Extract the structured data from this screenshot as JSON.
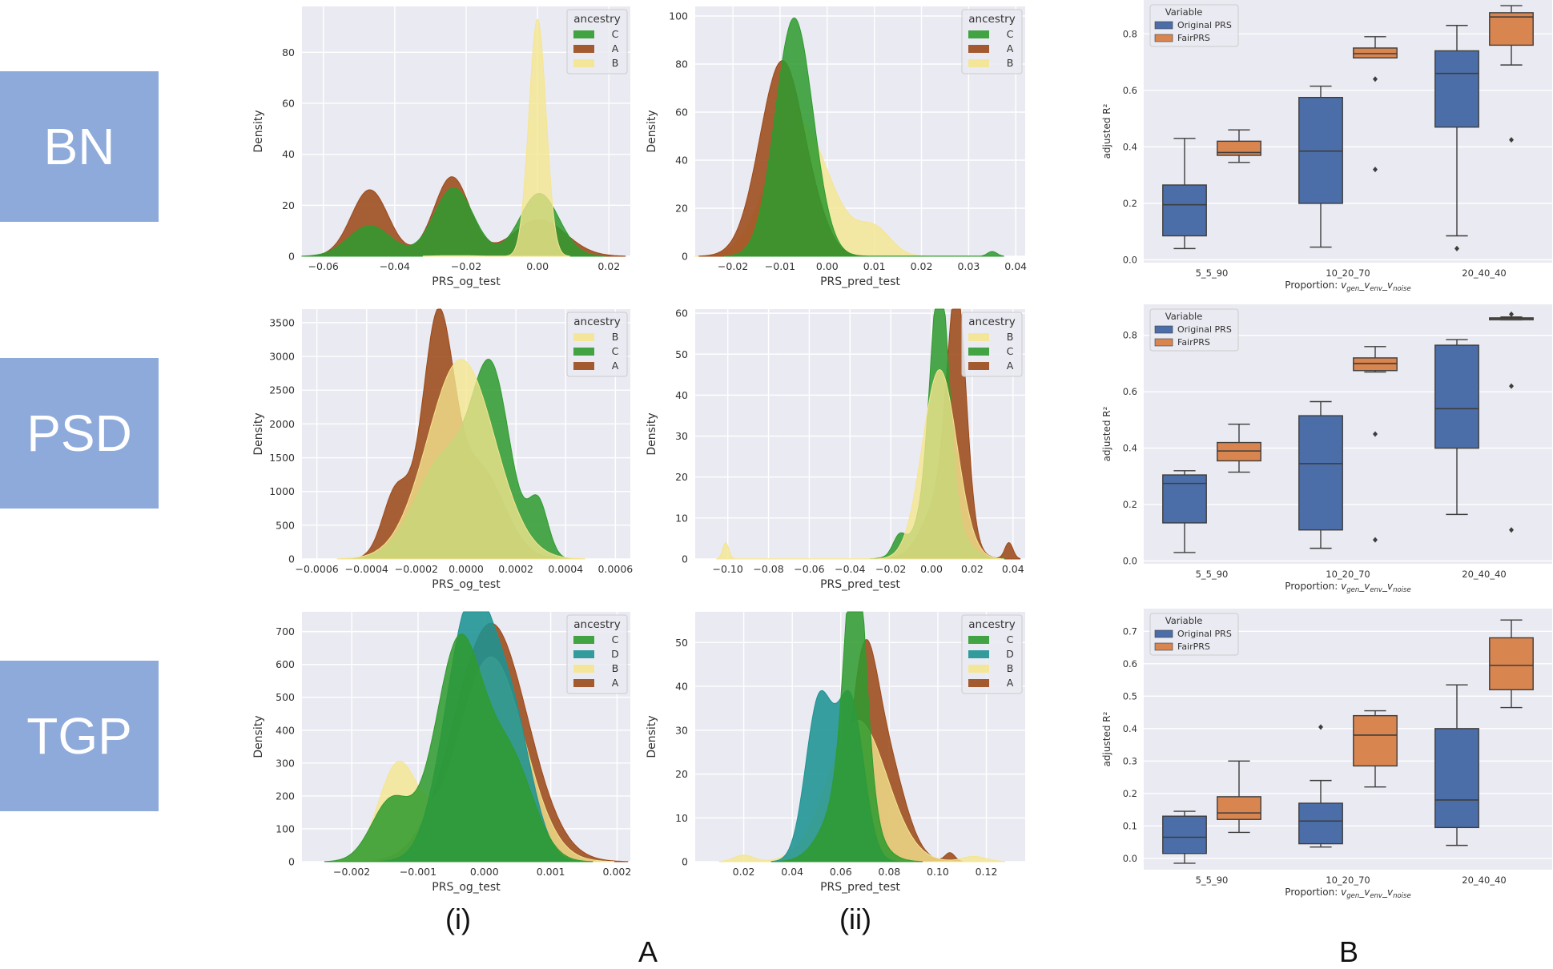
{
  "rows": [
    {
      "label": "BN"
    },
    {
      "label": "PSD"
    },
    {
      "label": "TGP"
    }
  ],
  "captions": {
    "col_i": "(i)",
    "col_ii": "(ii)",
    "panel_a": "A",
    "panel_b": "B"
  },
  "colors": {
    "A": "#9c4a1a",
    "B": "#f5e58e",
    "C": "#2f9b2f",
    "D": "#1e9393",
    "original": "#4c6ea8",
    "fair": "#d9854f",
    "bg": "#eaeaf2",
    "grid": "#ffffff"
  },
  "chart_data": [
    {
      "type": "area",
      "id": "bn_og",
      "xlabel": "PRS_og_test",
      "ylabel": "Density",
      "legend_title": "ancestry",
      "legend_order": [
        "C",
        "A",
        "B"
      ],
      "xlim": [
        -0.066,
        0.026
      ],
      "ylim": [
        0,
        98
      ],
      "xticks": [
        -0.06,
        -0.04,
        -0.02,
        0.0,
        0.02
      ],
      "xticklabels": [
        "−0.06",
        "−0.04",
        "−0.02",
        "0.00",
        "0.02"
      ],
      "yticks": [
        0,
        20,
        40,
        60,
        80
      ],
      "yticklabels": [
        "0",
        "20",
        "40",
        "60",
        "80"
      ],
      "series": [
        {
          "name": "A",
          "modes": [
            [
              -0.047,
              0.0052,
              0.34
            ],
            [
              -0.024,
              0.005,
              0.39
            ],
            [
              0.0005,
              0.0075,
              0.27
            ]
          ]
        },
        {
          "name": "B",
          "modes": [
            [
              0.0,
              0.0024,
              0.56
            ],
            [
              -0.023,
              0.006,
              0.004
            ]
          ]
        },
        {
          "name": "C",
          "modes": [
            [
              -0.047,
              0.006,
              0.18
            ],
            [
              -0.0235,
              0.0055,
              0.37
            ],
            [
              0.0005,
              0.0055,
              0.34
            ]
          ]
        }
      ]
    },
    {
      "type": "area",
      "id": "bn_pred",
      "xlabel": "PRS_pred_test",
      "ylabel": "Density",
      "legend_title": "ancestry",
      "legend_order": [
        "C",
        "A",
        "B"
      ],
      "xlim": [
        -0.028,
        0.042
      ],
      "ylim": [
        0,
        104
      ],
      "xticks": [
        -0.02,
        -0.01,
        0.0,
        0.01,
        0.02,
        0.03,
        0.04
      ],
      "xticklabels": [
        "−0.02",
        "−0.01",
        "0.00",
        "0.01",
        "0.02",
        "0.03",
        "0.04"
      ],
      "yticks": [
        0,
        20,
        40,
        60,
        80,
        100
      ],
      "yticklabels": [
        "0",
        "20",
        "40",
        "60",
        "80",
        "100"
      ],
      "series": [
        {
          "name": "A",
          "modes": [
            [
              -0.0095,
              0.0048,
              0.98
            ],
            [
              -0.001,
              0.0025,
              0.02
            ]
          ]
        },
        {
          "name": "B",
          "modes": [
            [
              -0.0065,
              0.006,
              0.85
            ],
            [
              0.01,
              0.0035,
              0.1
            ],
            [
              0.002,
              0.004,
              0.05
            ]
          ]
        },
        {
          "name": "C",
          "modes": [
            [
              -0.007,
              0.004,
              0.995
            ],
            [
              0.035,
              0.001,
              0.005
            ]
          ]
        }
      ]
    },
    {
      "type": "area",
      "id": "psd_og",
      "xlabel": "PRS_og_test",
      "ylabel": "Density",
      "legend_title": "ancestry",
      "legend_order": [
        "B",
        "C",
        "A"
      ],
      "xlim": [
        -0.00066,
        0.00066
      ],
      "ylim": [
        0,
        3700
      ],
      "xticks": [
        -0.0006,
        -0.0004,
        -0.0002,
        0.0,
        0.0002,
        0.0004,
        0.0006
      ],
      "xticklabels": [
        "−0.0006",
        "−0.0004",
        "−0.0002",
        "0.0000",
        "0.0002",
        "0.0004",
        "0.0006"
      ],
      "yticks": [
        0,
        500,
        1000,
        1500,
        2000,
        2500,
        3000,
        3500
      ],
      "yticklabels": [
        "0",
        "500",
        "1000",
        "1500",
        "2000",
        "2500",
        "3000",
        "3500"
      ],
      "series": [
        {
          "name": "A",
          "modes": [
            [
              -0.000115,
              6.2e-05,
              0.52
            ],
            [
              -0.00028,
              5.5e-05,
              0.14
            ],
            [
              5e-05,
              0.0001,
              0.34
            ]
          ]
        },
        {
          "name": "B",
          "modes": [
            [
              -2e-05,
              0.000135,
              1.0
            ]
          ]
        },
        {
          "name": "C",
          "modes": [
            [
              0.000105,
              7.5e-05,
              0.46
            ],
            [
              -8e-05,
              0.00012,
              0.46
            ],
            [
              0.00029,
              4e-05,
              0.08
            ]
          ]
        }
      ]
    },
    {
      "type": "area",
      "id": "psd_pred",
      "xlabel": "PRS_pred_test",
      "ylabel": "Density",
      "legend_title": "ancestry",
      "legend_order": [
        "B",
        "C",
        "A"
      ],
      "xlim": [
        -0.116,
        0.046
      ],
      "ylim": [
        0,
        61
      ],
      "xticks": [
        -0.1,
        -0.08,
        -0.06,
        -0.04,
        -0.02,
        0.0,
        0.02,
        0.04
      ],
      "xticklabels": [
        "−0.10",
        "−0.08",
        "−0.06",
        "−0.04",
        "−0.02",
        "0.00",
        "0.02",
        "0.04"
      ],
      "yticks": [
        0,
        10,
        20,
        30,
        40,
        50,
        60
      ],
      "yticklabels": [
        "0",
        "10",
        "20",
        "30",
        "40",
        "50",
        "60"
      ],
      "series": [
        {
          "name": "A",
          "modes": [
            [
              0.0125,
              0.0045,
              0.62
            ],
            [
              0.006,
              0.009,
              0.36
            ],
            [
              0.038,
              0.002,
              0.02
            ]
          ]
        },
        {
          "name": "B",
          "modes": [
            [
              0.004,
              0.0085,
              0.985
            ],
            [
              -0.101,
              0.0015,
              0.015
            ]
          ]
        },
        {
          "name": "C",
          "modes": [
            [
              0.004,
              0.0045,
              0.64
            ],
            [
              0.003,
              0.01,
              0.33
            ],
            [
              -0.016,
              0.003,
              0.03
            ]
          ]
        }
      ]
    },
    {
      "type": "area",
      "id": "tgp_og",
      "xlabel": "PRS_og_test",
      "ylabel": "Density",
      "legend_title": "ancestry",
      "legend_order": [
        "C",
        "D",
        "B",
        "A"
      ],
      "xlim": [
        -0.00275,
        0.0022
      ],
      "ylim": [
        0,
        760
      ],
      "xticks": [
        -0.002,
        -0.001,
        0.0,
        0.001,
        0.002
      ],
      "xticklabels": [
        "−0.002",
        "−0.001",
        "0.000",
        "0.001",
        "0.002"
      ],
      "yticks": [
        0,
        100,
        200,
        300,
        400,
        500,
        600,
        700
      ],
      "yticklabels": [
        "0",
        "100",
        "200",
        "300",
        "400",
        "500",
        "600",
        "700"
      ],
      "series": [
        {
          "name": "A",
          "modes": [
            [
              0.0001,
              0.00055,
              1.0
            ]
          ]
        },
        {
          "name": "B",
          "modes": [
            [
              0.0001,
              0.0005,
              0.78
            ],
            [
              -0.0013,
              0.0003,
              0.22
            ]
          ]
        },
        {
          "name": "C",
          "modes": [
            [
              -0.00038,
              0.00036,
              0.6
            ],
            [
              0.0004,
              0.00035,
              0.26
            ],
            [
              -0.0014,
              0.0003,
              0.14
            ]
          ]
        },
        {
          "name": "D",
          "modes": [
            [
              -0.0002,
              0.00038,
              0.75
            ],
            [
              0.00045,
              0.0003,
              0.25
            ]
          ]
        }
      ]
    },
    {
      "type": "area",
      "id": "tgp_pred",
      "xlabel": "PRS_pred_test",
      "ylabel": "Density",
      "legend_title": "ancestry",
      "legend_order": [
        "C",
        "D",
        "B",
        "A"
      ],
      "xlim": [
        0.0,
        0.136
      ],
      "ylim": [
        0,
        57
      ],
      "xticks": [
        0.02,
        0.04,
        0.06,
        0.08,
        0.1,
        0.12
      ],
      "xticklabels": [
        "0.02",
        "0.04",
        "0.06",
        "0.08",
        "0.10",
        "0.12"
      ],
      "yticks": [
        0,
        10,
        20,
        30,
        40,
        50
      ],
      "yticklabels": [
        "0",
        "10",
        "20",
        "30",
        "40",
        "50"
      ],
      "series": [
        {
          "name": "A",
          "modes": [
            [
              0.069,
              0.0055,
              0.5
            ],
            [
              0.078,
              0.008,
              0.49
            ],
            [
              0.105,
              0.002,
              0.01
            ]
          ]
        },
        {
          "name": "B",
          "modes": [
            [
              0.067,
              0.012,
              0.97
            ],
            [
              0.02,
              0.004,
              0.015
            ],
            [
              0.115,
              0.005,
              0.015
            ]
          ]
        },
        {
          "name": "C",
          "modes": [
            [
              0.066,
              0.0042,
              0.63
            ],
            [
              0.063,
              0.009,
              0.37
            ]
          ]
        },
        {
          "name": "D",
          "modes": [
            [
              0.051,
              0.0055,
              0.5
            ],
            [
              0.064,
              0.0055,
              0.5
            ]
          ]
        }
      ]
    },
    {
      "type": "box",
      "id": "bn_box",
      "xlabel": "Proportion: v_gen_v_env_v_noise",
      "ylabel": "adjusted R²",
      "legend_title": "Variable",
      "legend": [
        "Original PRS",
        "FairPRS"
      ],
      "categories": [
        "5_5_90",
        "10_20_70",
        "20_40_40"
      ],
      "ylim": [
        -0.01,
        0.92
      ],
      "yticks": [
        0.0,
        0.2,
        0.4,
        0.6,
        0.8
      ],
      "yticklabels": [
        "0.0",
        "0.2",
        "0.4",
        "0.6",
        "0.8"
      ],
      "series": [
        {
          "name": "Original PRS",
          "boxes": [
            {
              "whislo": 0.04,
              "q1": 0.085,
              "med": 0.195,
              "q3": 0.265,
              "whishi": 0.43,
              "fliers": []
            },
            {
              "whislo": 0.045,
              "q1": 0.2,
              "med": 0.385,
              "q3": 0.575,
              "whishi": 0.615,
              "fliers": []
            },
            {
              "whislo": 0.085,
              "q1": 0.47,
              "med": 0.66,
              "q3": 0.74,
              "whishi": 0.83,
              "fliers": [
                0.04
              ]
            }
          ]
        },
        {
          "name": "FairPRS",
          "boxes": [
            {
              "whislo": 0.345,
              "q1": 0.37,
              "med": 0.38,
              "q3": 0.42,
              "whishi": 0.46,
              "fliers": []
            },
            {
              "whislo": 0.715,
              "q1": 0.715,
              "med": 0.73,
              "q3": 0.75,
              "whishi": 0.79,
              "fliers": [
                0.64,
                0.32
              ]
            },
            {
              "whislo": 0.69,
              "q1": 0.76,
              "med": 0.86,
              "q3": 0.875,
              "whishi": 0.9,
              "fliers": [
                0.425
              ]
            }
          ]
        }
      ]
    },
    {
      "type": "box",
      "id": "psd_box",
      "xlabel": "Proportion: v_gen_v_env_v_noise",
      "ylabel": "adjusted R²",
      "legend_title": "Variable",
      "legend": [
        "Original PRS",
        "FairPRS"
      ],
      "categories": [
        "5_5_90",
        "10_20_70",
        "20_40_40"
      ],
      "ylim": [
        -0.01,
        0.91
      ],
      "yticks": [
        0.0,
        0.2,
        0.4,
        0.6,
        0.8
      ],
      "yticklabels": [
        "0.0",
        "0.2",
        "0.4",
        "0.6",
        "0.8"
      ],
      "series": [
        {
          "name": "Original PRS",
          "boxes": [
            {
              "whislo": 0.03,
              "q1": 0.135,
              "med": 0.275,
              "q3": 0.305,
              "whishi": 0.32,
              "fliers": []
            },
            {
              "whislo": 0.045,
              "q1": 0.11,
              "med": 0.345,
              "q3": 0.515,
              "whishi": 0.565,
              "fliers": []
            },
            {
              "whislo": 0.165,
              "q1": 0.4,
              "med": 0.54,
              "q3": 0.765,
              "whishi": 0.785,
              "fliers": []
            }
          ]
        },
        {
          "name": "FairPRS",
          "boxes": [
            {
              "whislo": 0.315,
              "q1": 0.355,
              "med": 0.39,
              "q3": 0.42,
              "whishi": 0.485,
              "fliers": []
            },
            {
              "whislo": 0.67,
              "q1": 0.675,
              "med": 0.7,
              "q3": 0.72,
              "whishi": 0.76,
              "fliers": [
                0.45,
                0.075
              ]
            },
            {
              "whislo": 0.855,
              "q1": 0.855,
              "med": 0.86,
              "q3": 0.862,
              "whishi": 0.865,
              "fliers": [
                0.875,
                0.62,
                0.11
              ]
            }
          ]
        }
      ]
    },
    {
      "type": "box",
      "id": "tgp_box",
      "xlabel": "Proportion: v_gen_v_env_v_noise",
      "ylabel": "adjusted R²",
      "legend_title": "Variable",
      "legend": [
        "Original PRS",
        "FairPRS"
      ],
      "categories": [
        "5_5_90",
        "10_20_70",
        "20_40_40"
      ],
      "ylim": [
        -0.035,
        0.77
      ],
      "yticks": [
        0.0,
        0.1,
        0.2,
        0.3,
        0.4,
        0.5,
        0.6,
        0.7
      ],
      "yticklabels": [
        "0.0",
        "0.1",
        "0.2",
        "0.3",
        "0.4",
        "0.5",
        "0.6",
        "0.7"
      ],
      "series": [
        {
          "name": "Original PRS",
          "boxes": [
            {
              "whislo": -0.015,
              "q1": 0.015,
              "med": 0.065,
              "q3": 0.13,
              "whishi": 0.145,
              "fliers": []
            },
            {
              "whislo": 0.035,
              "q1": 0.045,
              "med": 0.115,
              "q3": 0.17,
              "whishi": 0.24,
              "fliers": [
                0.405
              ]
            },
            {
              "whislo": 0.04,
              "q1": 0.095,
              "med": 0.18,
              "q3": 0.4,
              "whishi": 0.535,
              "fliers": []
            }
          ]
        },
        {
          "name": "FairPRS",
          "boxes": [
            {
              "whislo": 0.08,
              "q1": 0.12,
              "med": 0.14,
              "q3": 0.19,
              "whishi": 0.3,
              "fliers": []
            },
            {
              "whislo": 0.22,
              "q1": 0.285,
              "med": 0.38,
              "q3": 0.44,
              "whishi": 0.455,
              "fliers": []
            },
            {
              "whislo": 0.465,
              "q1": 0.52,
              "med": 0.595,
              "q3": 0.68,
              "whishi": 0.735,
              "fliers": []
            }
          ]
        }
      ]
    }
  ]
}
